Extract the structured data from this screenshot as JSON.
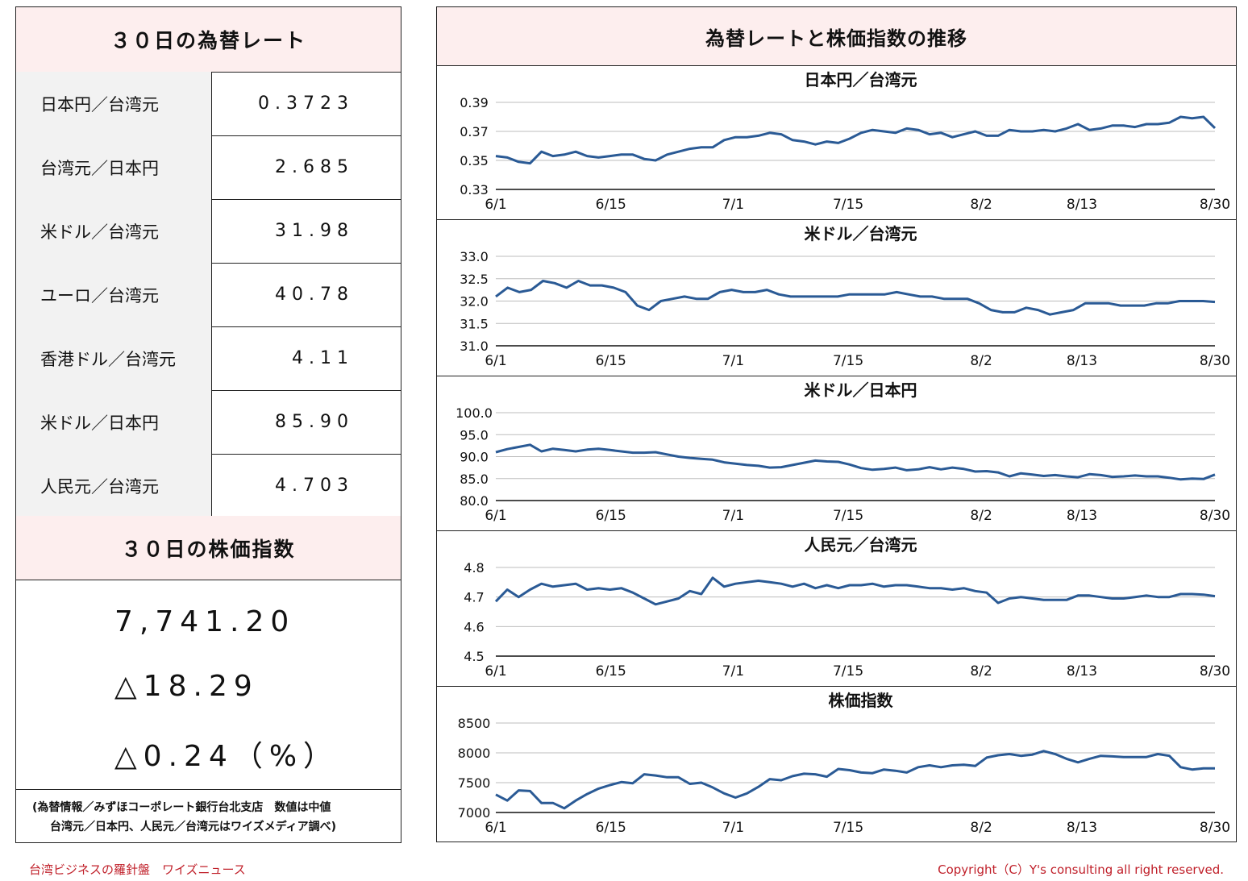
{
  "left": {
    "rate_title": "３０日の為替レート",
    "rates": [
      {
        "label": "日本円／台湾元",
        "value": "0.3723"
      },
      {
        "label": "台湾元／日本円",
        "value": "2.685"
      },
      {
        "label": "米ドル／台湾元",
        "value": "31.98"
      },
      {
        "label": "ユーロ／台湾元",
        "value": "40.78"
      },
      {
        "label": "香港ドル／台湾元",
        "value": "4.11"
      },
      {
        "label": "米ドル／日本円",
        "value": "85.90"
      },
      {
        "label": "人民元／台湾元",
        "value": "4.703"
      }
    ],
    "index_title": "３０日の株価指数",
    "index_value": "7,741.20",
    "index_change": "△18.29",
    "index_change_pct": "△0.24（%）",
    "note_line1": "(為替情報／みずほコーポレート銀行台北支店　数値は中値",
    "note_line2": "台湾元／日本円、人民元／台湾元はワイズメディア調べ)"
  },
  "right": {
    "title": "為替レートと株価指数の推移"
  },
  "footer": {
    "left": "台湾ビジネスの羅針盤　ワイズニュース",
    "right": "Copyright（C）Y's consulting all right reserved."
  },
  "colors": {
    "line": "#2a5a95",
    "header_bg": "#fdeeee",
    "label_bg": "#f2f2f2",
    "footer_text": "#c0202a"
  },
  "chart_data": [
    {
      "type": "line",
      "title": "日本円／台湾元",
      "ylim": [
        0.33,
        0.39
      ],
      "yticks": [
        "0.39",
        "0.37",
        "0.35",
        "0.33"
      ],
      "xticks": [
        "6/1",
        "6/15",
        "7/1",
        "7/15",
        "8/2",
        "8/13",
        "8/30"
      ],
      "values": [
        0.353,
        0.352,
        0.349,
        0.348,
        0.356,
        0.353,
        0.354,
        0.356,
        0.353,
        0.352,
        0.353,
        0.354,
        0.354,
        0.351,
        0.35,
        0.354,
        0.356,
        0.358,
        0.359,
        0.359,
        0.364,
        0.366,
        0.366,
        0.367,
        0.369,
        0.368,
        0.364,
        0.363,
        0.361,
        0.363,
        0.362,
        0.365,
        0.369,
        0.371,
        0.37,
        0.369,
        0.372,
        0.371,
        0.368,
        0.369,
        0.366,
        0.368,
        0.37,
        0.367,
        0.367,
        0.371,
        0.37,
        0.37,
        0.371,
        0.37,
        0.372,
        0.375,
        0.371,
        0.372,
        0.374,
        0.374,
        0.373,
        0.375,
        0.375,
        0.376,
        0.38,
        0.379,
        0.38,
        0.3723
      ]
    },
    {
      "type": "line",
      "title": "米ドル／台湾元",
      "ylim": [
        31.0,
        33.0
      ],
      "yticks": [
        "33.0",
        "32.5",
        "32.0",
        "31.5",
        "31.0"
      ],
      "xticks": [
        "6/1",
        "6/15",
        "7/1",
        "7/15",
        "8/2",
        "8/13",
        "8/30"
      ],
      "values": [
        32.1,
        32.3,
        32.2,
        32.25,
        32.45,
        32.4,
        32.3,
        32.45,
        32.35,
        32.35,
        32.3,
        32.2,
        31.9,
        31.8,
        32.0,
        32.05,
        32.1,
        32.05,
        32.05,
        32.2,
        32.25,
        32.2,
        32.2,
        32.25,
        32.15,
        32.1,
        32.1,
        32.1,
        32.1,
        32.1,
        32.15,
        32.15,
        32.15,
        32.15,
        32.2,
        32.15,
        32.1,
        32.1,
        32.05,
        32.05,
        32.05,
        31.95,
        31.8,
        31.75,
        31.75,
        31.85,
        31.8,
        31.7,
        31.75,
        31.8,
        31.95,
        31.95,
        31.95,
        31.9,
        31.9,
        31.9,
        31.95,
        31.95,
        32.0,
        32.0,
        32.0,
        31.98
      ]
    },
    {
      "type": "line",
      "title": "米ドル／日本円",
      "ylim": [
        80.0,
        100.0
      ],
      "yticks": [
        "100.0",
        "95.0",
        "90.0",
        "85.0",
        "80.0"
      ],
      "xticks": [
        "6/1",
        "6/15",
        "7/1",
        "7/15",
        "8/2",
        "8/13",
        "8/30"
      ],
      "values": [
        91.0,
        91.7,
        92.2,
        92.7,
        91.2,
        91.8,
        91.5,
        91.2,
        91.6,
        91.8,
        91.5,
        91.2,
        90.9,
        90.9,
        91.0,
        90.5,
        90.0,
        89.7,
        89.5,
        89.3,
        88.7,
        88.4,
        88.1,
        87.9,
        87.5,
        87.6,
        88.1,
        88.6,
        89.1,
        88.9,
        88.8,
        88.2,
        87.4,
        87.0,
        87.2,
        87.5,
        86.9,
        87.1,
        87.6,
        87.1,
        87.5,
        87.2,
        86.6,
        86.7,
        86.4,
        85.5,
        86.2,
        85.9,
        85.6,
        85.8,
        85.5,
        85.3,
        86.0,
        85.8,
        85.4,
        85.5,
        85.7,
        85.5,
        85.5,
        85.2,
        84.8,
        85.0,
        84.9,
        85.9
      ]
    },
    {
      "type": "line",
      "title": "人民元／台湾元",
      "ylim": [
        4.5,
        4.8
      ],
      "yticks": [
        "4.8",
        "4.7",
        "4.6",
        "4.5"
      ],
      "xticks": [
        "6/1",
        "6/15",
        "7/1",
        "7/15",
        "8/2",
        "8/13",
        "8/30"
      ],
      "values": [
        4.685,
        4.725,
        4.7,
        4.725,
        4.745,
        4.735,
        4.74,
        4.745,
        4.725,
        4.73,
        4.725,
        4.73,
        4.715,
        4.695,
        4.675,
        4.685,
        4.695,
        4.72,
        4.71,
        4.765,
        4.735,
        4.745,
        4.75,
        4.755,
        4.75,
        4.745,
        4.735,
        4.745,
        4.73,
        4.74,
        4.73,
        4.74,
        4.74,
        4.745,
        4.735,
        4.74,
        4.74,
        4.735,
        4.73,
        4.73,
        4.725,
        4.73,
        4.72,
        4.715,
        4.68,
        4.695,
        4.7,
        4.695,
        4.69,
        4.69,
        4.69,
        4.705,
        4.705,
        4.7,
        4.695,
        4.695,
        4.7,
        4.705,
        4.7,
        4.7,
        4.71,
        4.71,
        4.708,
        4.703
      ]
    },
    {
      "type": "line",
      "title": "株価指数",
      "ylim": [
        7000,
        8500
      ],
      "yticks": [
        "8500",
        "8000",
        "7500",
        "7000"
      ],
      "xticks": [
        "6/1",
        "6/15",
        "7/1",
        "7/15",
        "8/2",
        "8/13",
        "8/30"
      ],
      "values": [
        7300,
        7200,
        7370,
        7360,
        7160,
        7160,
        7070,
        7200,
        7310,
        7400,
        7460,
        7510,
        7490,
        7640,
        7620,
        7590,
        7590,
        7480,
        7500,
        7420,
        7320,
        7250,
        7320,
        7430,
        7560,
        7540,
        7610,
        7650,
        7640,
        7600,
        7730,
        7710,
        7670,
        7660,
        7720,
        7700,
        7670,
        7760,
        7790,
        7760,
        7790,
        7800,
        7780,
        7920,
        7960,
        7980,
        7950,
        7970,
        8030,
        7980,
        7900,
        7840,
        7900,
        7950,
        7940,
        7930,
        7930,
        7930,
        7980,
        7950,
        7760,
        7720,
        7740,
        7741
      ]
    }
  ]
}
